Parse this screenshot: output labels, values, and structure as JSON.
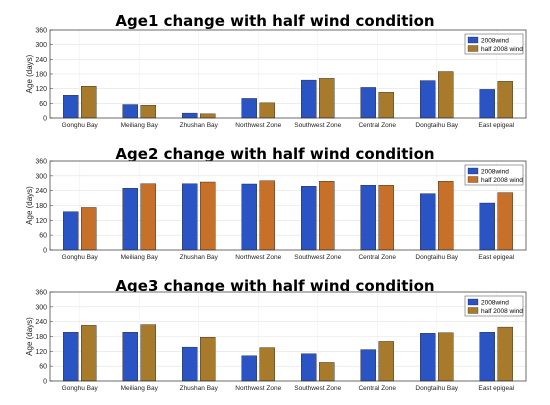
{
  "chart_data": [
    {
      "type": "bar",
      "title": "Age1 change with half wind condition",
      "ylabel": "Age (days)",
      "xlabel": "",
      "ylim": [
        0,
        360
      ],
      "yticks": [
        "0",
        "60",
        "120",
        "180",
        "240",
        "300",
        "360"
      ],
      "grid": true,
      "legend_position": "top-right",
      "categories": [
        "Gonghu Bay",
        "Meiliang Bay",
        "Zhushan Bay",
        "Northwest Zone",
        "Southwest Zone",
        "Central Zone",
        "Dongtaihu Bay",
        "East epigeal"
      ],
      "series": [
        {
          "name": "2008wind",
          "color": "#2a54c4",
          "values": [
            93,
            55,
            20,
            80,
            155,
            125,
            153,
            117
          ]
        },
        {
          "name": "half 2008 wind",
          "color": "#a87a2c",
          "values": [
            130,
            52,
            17,
            62,
            162,
            105,
            190,
            150
          ]
        }
      ]
    },
    {
      "type": "bar",
      "title": "Age2 change with half wind condition",
      "ylabel": "Age (days)",
      "xlabel": "",
      "ylim": [
        0,
        360
      ],
      "yticks": [
        "0",
        "60",
        "120",
        "180",
        "240",
        "300",
        "360"
      ],
      "grid": true,
      "legend_position": "top-right",
      "categories": [
        "Gonghu Bay",
        "Meiliang Bay",
        "Zhushan Bay",
        "Northwest Zone",
        "Southwest Zone",
        "Central Zone",
        "Dongtaihu Bay",
        "East epigeal"
      ],
      "series": [
        {
          "name": "2008wind",
          "color": "#2a54c4",
          "values": [
            155,
            250,
            268,
            267,
            258,
            262,
            228,
            190
          ]
        },
        {
          "name": "half 2008 wind",
          "color": "#c6702a",
          "values": [
            172,
            268,
            275,
            280,
            278,
            262,
            278,
            232
          ]
        }
      ]
    },
    {
      "type": "bar",
      "title": "Age3 change with half wind condition",
      "ylabel": "Age (days)",
      "xlabel": "",
      "ylim": [
        0,
        360
      ],
      "yticks": [
        "0",
        "60",
        "120",
        "180",
        "240",
        "300",
        "360"
      ],
      "grid": true,
      "legend_position": "top-right",
      "categories": [
        "Gonghu Bay",
        "Meiliang Bay",
        "Zhushan Bay",
        "Northwest Zone",
        "Southwest Zone",
        "Central Zone",
        "Dongtaihu Bay",
        "East epigeal"
      ],
      "series": [
        {
          "name": "2008wind",
          "color": "#2a54c4",
          "values": [
            197,
            197,
            137,
            102,
            110,
            127,
            193,
            197
          ]
        },
        {
          "name": "half 2008 wind",
          "color": "#a87a2c",
          "values": [
            225,
            228,
            177,
            135,
            75,
            160,
            195,
            218
          ]
        }
      ]
    }
  ]
}
